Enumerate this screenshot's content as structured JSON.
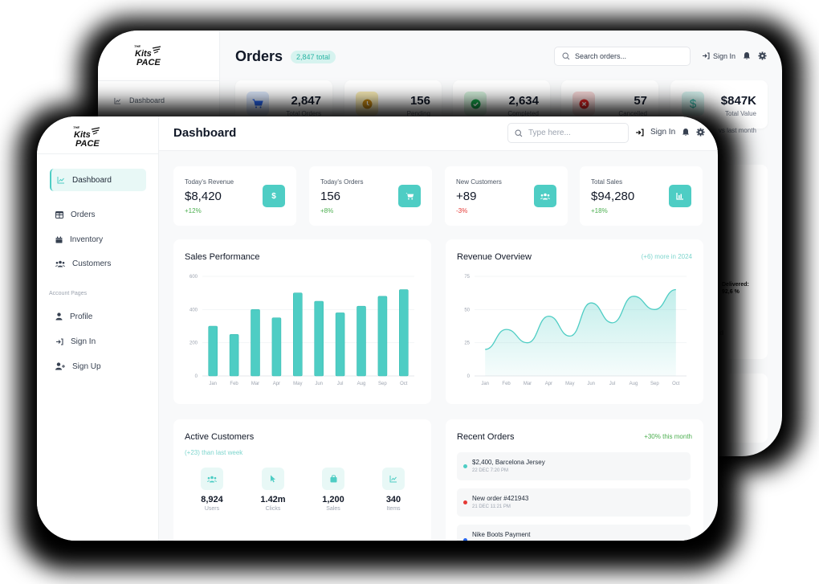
{
  "brand": {
    "line1": "THE",
    "line2": "Kits",
    "line3": "PACE"
  },
  "back_window": {
    "sidebar": {
      "items": [
        {
          "label": "Dashboard",
          "icon": "chart-line-icon"
        }
      ]
    },
    "title": "Orders",
    "badge": "2,847 total",
    "search": {
      "placeholder": "Search orders..."
    },
    "header": {
      "sign_in": "Sign In"
    },
    "stats": [
      {
        "value": "2,847",
        "label": "Total Orders",
        "icon": "cart-icon",
        "bg": "#dbe7fb",
        "fg": "#2563eb"
      },
      {
        "value": "156",
        "label": "Pending",
        "icon": "clock-icon",
        "bg": "#fbeeb8",
        "fg": "#c98a14"
      },
      {
        "value": "2,634",
        "label": "Completed",
        "icon": "check-circle-icon",
        "bg": "#d5f2dd",
        "fg": "#16a34a"
      },
      {
        "value": "57",
        "label": "Cancelled",
        "icon": "x-circle-icon",
        "bg": "#f8d9d9",
        "fg": "#dc2626"
      },
      {
        "value": "$847K",
        "label": "Total Value",
        "icon": "dollar-icon",
        "bg": "#d6f3ef",
        "fg": "#2bb5a4"
      }
    ],
    "vs_last_month": "vs last month",
    "delivered_label": "Delivered:",
    "delivered_value": "92,6 %",
    "frag1": "d",
    "frag2": "ed"
  },
  "front_window": {
    "sidebar": {
      "items": [
        {
          "label": "Dashboard",
          "icon": "chart-line-icon",
          "active": true
        },
        {
          "label": "Orders",
          "icon": "table-icon"
        },
        {
          "label": "Inventory",
          "icon": "box-icon"
        },
        {
          "label": "Customers",
          "icon": "users-icon"
        }
      ],
      "section_label": "Account Pages",
      "account_items": [
        {
          "label": "Profile",
          "icon": "user-icon"
        },
        {
          "label": "Sign In",
          "icon": "sign-in-icon"
        },
        {
          "label": "Sign Up",
          "icon": "user-plus-icon"
        }
      ]
    },
    "header": {
      "title": "Dashboard",
      "search_placeholder": "Type here...",
      "sign_in": "Sign In"
    },
    "stats": [
      {
        "label": "Today's Revenue",
        "value": "$8,420",
        "change": "+12%",
        "trend": "up",
        "icon": "dollar-icon"
      },
      {
        "label": "Today's Orders",
        "value": "156",
        "change": "+8%",
        "trend": "up",
        "icon": "cart-icon"
      },
      {
        "label": "New Customers",
        "value": "+89",
        "change": "-3%",
        "trend": "down",
        "icon": "users-icon"
      },
      {
        "label": "Total Sales",
        "value": "$94,280",
        "change": "+18%",
        "trend": "up",
        "icon": "bar-chart-icon"
      }
    ],
    "sales_performance": {
      "title": "Sales Performance"
    },
    "revenue_overview": {
      "title": "Revenue Overview",
      "note": "(+6) more in 2024"
    },
    "active_customers": {
      "title": "Active Customers",
      "note": "(+23) than last week",
      "items": [
        {
          "value": "8,924",
          "label": "Users",
          "icon": "users-icon"
        },
        {
          "value": "1.42m",
          "label": "Clicks",
          "icon": "cursor-icon"
        },
        {
          "value": "1,200",
          "label": "Sales",
          "icon": "bag-icon"
        },
        {
          "value": "340",
          "label": "Items",
          "icon": "chart-line-icon"
        }
      ]
    },
    "recent_orders": {
      "title": "Recent Orders",
      "note": "+30% this month",
      "items": [
        {
          "title": "$2,400, Barcelona Jersey",
          "date": "22 DEC 7:20 PM",
          "color": "#4ecdc4"
        },
        {
          "title": "New order #421943",
          "date": "21 DEC 11:21 PM",
          "color": "#e53935"
        },
        {
          "title": "Nike Boots Payment",
          "date": "",
          "color": "#2563eb"
        }
      ]
    }
  },
  "colors": {
    "accent": "#4ecdc4",
    "positive": "#4caf50",
    "negative": "#e53935",
    "note_teal": "#7fd6ce"
  },
  "chart_data": [
    {
      "type": "bar",
      "title": "Sales Performance",
      "categories": [
        "Jan",
        "Feb",
        "Mar",
        "Apr",
        "May",
        "Jun",
        "Jul",
        "Aug",
        "Sep",
        "Oct"
      ],
      "values": [
        300,
        250,
        400,
        350,
        500,
        450,
        380,
        420,
        480,
        520
      ],
      "yticks": [
        0,
        200,
        400,
        600
      ],
      "ylim": [
        0,
        600
      ],
      "grid": true,
      "color": "#4ecdc4"
    },
    {
      "type": "area",
      "title": "Revenue Overview",
      "categories": [
        "Jan",
        "Feb",
        "Mar",
        "Apr",
        "May",
        "Jun",
        "Jul",
        "Aug",
        "Sep",
        "Oct"
      ],
      "values": [
        20,
        35,
        25,
        45,
        30,
        55,
        40,
        60,
        50,
        65
      ],
      "yticks": [
        0,
        25,
        50,
        75
      ],
      "ylim": [
        0,
        75
      ],
      "grid": true,
      "color": "#4ecdc4"
    }
  ]
}
